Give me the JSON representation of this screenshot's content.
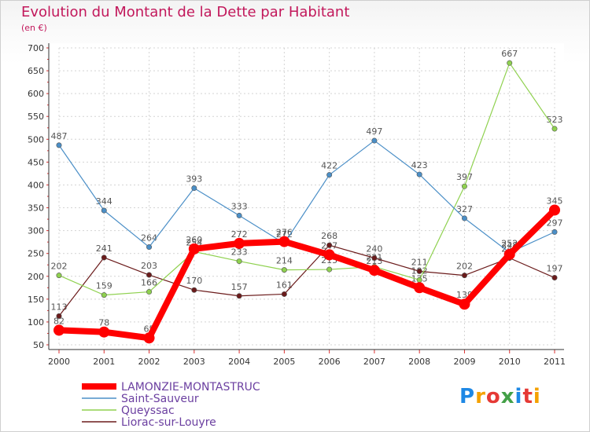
{
  "title": "Evolution du Montant de la Dette par Habitant",
  "unit_label": "(en €)",
  "logo_text": "Proxiti",
  "chart_data": {
    "type": "line",
    "title": "Evolution du Montant de la Dette par Habitant",
    "ylabel": "(en €)",
    "xlabel": "",
    "x": [
      "2000",
      "2001",
      "2002",
      "2003",
      "2004",
      "2005",
      "2006",
      "2007",
      "2008",
      "2009",
      "2010",
      "2011"
    ],
    "ylim": [
      50,
      700
    ],
    "yticks": [
      50,
      100,
      150,
      200,
      250,
      300,
      350,
      400,
      450,
      500,
      550,
      600,
      650,
      700
    ],
    "grid": true,
    "legend_position": "bottom-left",
    "series": [
      {
        "name": "LAMONZIE-MONTASTRUC",
        "color": "#ff0000",
        "values": [
          82,
          78,
          65,
          260,
          272,
          276,
          247,
          213,
          175,
          139,
          248,
          345
        ]
      },
      {
        "name": "Saint-Sauveur",
        "color": "#4b8fc7",
        "values": [
          487,
          344,
          264,
          393,
          333,
          272,
          422,
          497,
          423,
          327,
          252,
          297
        ]
      },
      {
        "name": "Queyssac",
        "color": "#8fd14f",
        "values": [
          202,
          159,
          166,
          254,
          233,
          214,
          215,
          221,
          192,
          397,
          667,
          523
        ]
      },
      {
        "name": "Liorac-sur-Louyre",
        "color": "#6b1b1b",
        "values": [
          113,
          241,
          203,
          170,
          157,
          161,
          268,
          240,
          211,
          202,
          240,
          197
        ]
      }
    ]
  }
}
